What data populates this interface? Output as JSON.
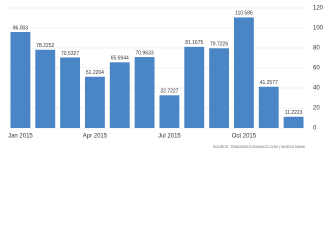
{
  "chart_data": {
    "type": "bar",
    "categories": [
      "Jan 2015",
      null,
      null,
      "Apr 2015",
      null,
      null,
      "Jul 2015",
      null,
      null,
      "Oct 2015",
      null,
      null
    ],
    "values": [
      96.003,
      78.2252,
      70.5327,
      51.2204,
      65.6944,
      70.9633,
      32.7227,
      81.1675,
      79.7226,
      110.586,
      41.2577,
      11.2223
    ],
    "color": "#4a86c5",
    "ylim": [
      0,
      120
    ],
    "yticks": [
      0,
      20,
      40,
      60,
      80,
      100,
      120
    ],
    "grid": true,
    "source": "SOURCE: TRADINGECONOMICS.COM | WORLD BANK"
  }
}
